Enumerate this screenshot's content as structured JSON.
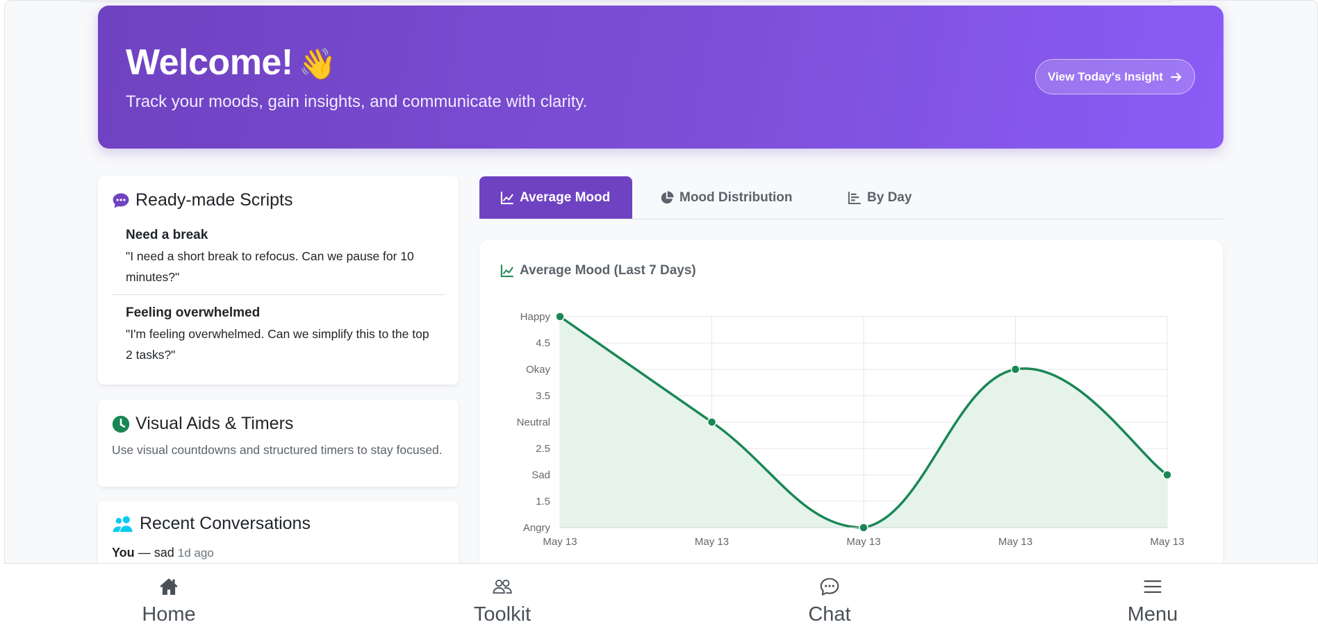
{
  "hero": {
    "title": "Welcome!",
    "emoji": "👋",
    "subtitle": "Track your moods, gain insights, and communicate with clarity.",
    "insight_button_label": "View Today's Insight",
    "gradient_start": "#6f42c1",
    "gradient_end": "#8b5cf6"
  },
  "scripts": {
    "title": "Ready-made Scripts",
    "icon": "chat-bubble-icon",
    "icon_color": "#6f42c1",
    "items": [
      {
        "name": "Need a break",
        "text": "\"I need a short break to refocus. Can we pause for 10 minutes?\""
      },
      {
        "name": "Feeling overwhelmed",
        "text": "\"I'm feeling overwhelmed. Can we simplify this to the top 2 tasks?\""
      }
    ]
  },
  "visual_aids": {
    "title": "Visual Aids & Timers",
    "icon": "clock-icon",
    "icon_color": "#198754",
    "description": "Use visual countdowns and structured timers to stay focused."
  },
  "recent": {
    "title": "Recent Conversations",
    "icon": "people-icon",
    "icon_color": "#0dcaf0",
    "items": [
      {
        "who": "You",
        "separator": " — ",
        "mood": "sad",
        "ago": "1d ago"
      }
    ]
  },
  "tabs": [
    {
      "label": "Average Mood",
      "icon": "line-chart-icon",
      "active": true
    },
    {
      "label": "Mood Distribution",
      "icon": "pie-chart-icon",
      "active": false
    },
    {
      "label": "By Day",
      "icon": "bar-list-icon",
      "active": false
    }
  ],
  "chart": {
    "title": "Average Mood (Last 7 Days)",
    "icon": "line-chart-icon",
    "icon_color": "#198754"
  },
  "chart_data": {
    "type": "area",
    "title": "Average Mood (Last 7 Days)",
    "x": [
      "May 13",
      "May 13",
      "May 13",
      "May 13",
      "May 13"
    ],
    "values": [
      5,
      3,
      1,
      4,
      2
    ],
    "ylim": [
      1,
      5
    ],
    "yticks": [
      {
        "value": 5,
        "label": "Happy"
      },
      {
        "value": 4.5,
        "label": "4.5"
      },
      {
        "value": 4,
        "label": "Okay"
      },
      {
        "value": 3.5,
        "label": "3.5"
      },
      {
        "value": 3,
        "label": "Neutral"
      },
      {
        "value": 2.5,
        "label": "2.5"
      },
      {
        "value": 2,
        "label": "Sad"
      },
      {
        "value": 1.5,
        "label": "1.5"
      },
      {
        "value": 1,
        "label": "Angry"
      }
    ],
    "grid": true,
    "line_color": "#198754",
    "fill_color": "#e6f3ea"
  },
  "bottom_nav": [
    {
      "label": "Home",
      "icon": "home-icon"
    },
    {
      "label": "Toolkit",
      "icon": "people-outline-icon"
    },
    {
      "label": "Chat",
      "icon": "chat-outline-icon"
    },
    {
      "label": "Menu",
      "icon": "hamburger-icon"
    }
  ]
}
